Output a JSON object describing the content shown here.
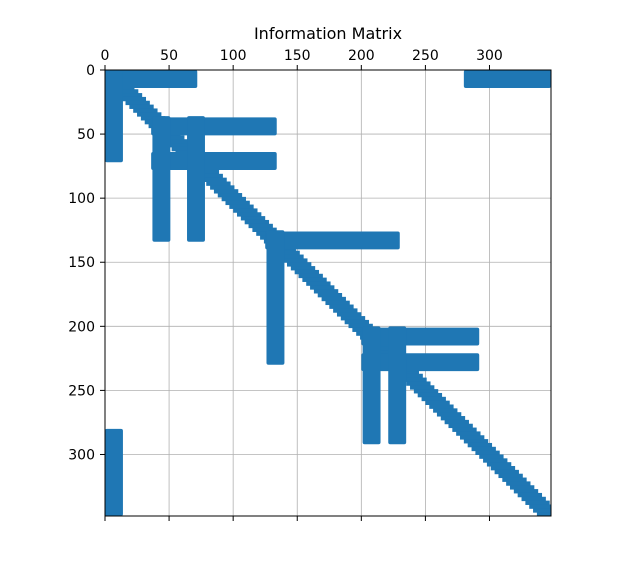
{
  "chart_data": {
    "type": "heatmap",
    "title": "Information Matrix",
    "xlabel": "",
    "ylabel": "",
    "matrix_size": 348,
    "xlim": [
      0,
      348
    ],
    "ylim": [
      348,
      0
    ],
    "x_axis_position": "top",
    "y_axis_inverted": true,
    "grid": true,
    "x_ticks": [
      0,
      50,
      100,
      150,
      200,
      250,
      300
    ],
    "y_ticks": [
      0,
      50,
      100,
      150,
      200,
      250,
      300
    ],
    "x_tick_labels": [
      "0",
      "50",
      "100",
      "150",
      "200",
      "250",
      "300"
    ],
    "y_tick_labels": [
      "0",
      "50",
      "100",
      "150",
      "200",
      "250",
      "300"
    ],
    "marker_color": "#1f77b4",
    "diagonal_band": {
      "from": 0,
      "to": 348,
      "half_width": 8
    },
    "blocks": [
      {
        "col_from": 0,
        "col_to": 72,
        "row_from": 0,
        "row_to": 14
      },
      {
        "col_from": 280,
        "col_to": 348,
        "row_from": 0,
        "row_to": 14
      },
      {
        "col_from": 0,
        "col_to": 14,
        "row_from": 0,
        "row_to": 72
      },
      {
        "col_from": 0,
        "col_to": 14,
        "row_from": 280,
        "row_to": 348
      },
      {
        "col_from": 36,
        "col_to": 134,
        "row_from": 37,
        "row_to": 51
      },
      {
        "col_from": 36,
        "col_to": 134,
        "row_from": 64,
        "row_to": 78
      },
      {
        "col_from": 37,
        "col_to": 51,
        "row_from": 36,
        "row_to": 134
      },
      {
        "col_from": 64,
        "col_to": 78,
        "row_from": 36,
        "row_to": 134
      },
      {
        "col_from": 125,
        "col_to": 230,
        "row_from": 126,
        "row_to": 140
      },
      {
        "col_from": 126,
        "col_to": 140,
        "row_from": 125,
        "row_to": 230
      },
      {
        "col_from": 200,
        "col_to": 292,
        "row_from": 201,
        "row_to": 215
      },
      {
        "col_from": 200,
        "col_to": 292,
        "row_from": 221,
        "row_to": 235
      },
      {
        "col_from": 201,
        "col_to": 215,
        "row_from": 200,
        "row_to": 292
      },
      {
        "col_from": 221,
        "col_to": 235,
        "row_from": 200,
        "row_to": 292
      }
    ]
  }
}
